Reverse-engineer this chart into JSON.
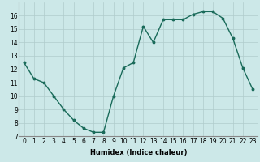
{
  "x": [
    0,
    1,
    2,
    3,
    4,
    5,
    6,
    7,
    8,
    9,
    10,
    11,
    12,
    13,
    14,
    15,
    16,
    17,
    18,
    19,
    20,
    21,
    22,
    23
  ],
  "y": [
    12.5,
    11.3,
    11.0,
    10.0,
    9.0,
    8.2,
    7.6,
    7.3,
    7.3,
    10.0,
    12.1,
    12.5,
    15.2,
    14.0,
    15.7,
    15.7,
    15.7,
    16.1,
    16.3,
    16.3,
    15.8,
    14.3,
    12.1,
    10.5
  ],
  "line_color": "#1a6b5a",
  "marker": "o",
  "marker_size": 1.8,
  "bg_color": "#cce8e8",
  "grid_color": "#b0cccc",
  "xlabel": "Humidex (Indice chaleur)",
  "ylim": [
    7,
    17
  ],
  "xlim": [
    -0.5,
    23.5
  ],
  "yticks": [
    7,
    8,
    9,
    10,
    11,
    12,
    13,
    14,
    15,
    16
  ],
  "xticks": [
    0,
    1,
    2,
    3,
    4,
    5,
    6,
    7,
    8,
    9,
    10,
    11,
    12,
    13,
    14,
    15,
    16,
    17,
    18,
    19,
    20,
    21,
    22,
    23
  ],
  "xlabel_fontsize": 6.0,
  "tick_fontsize": 5.5,
  "line_width": 1.0
}
